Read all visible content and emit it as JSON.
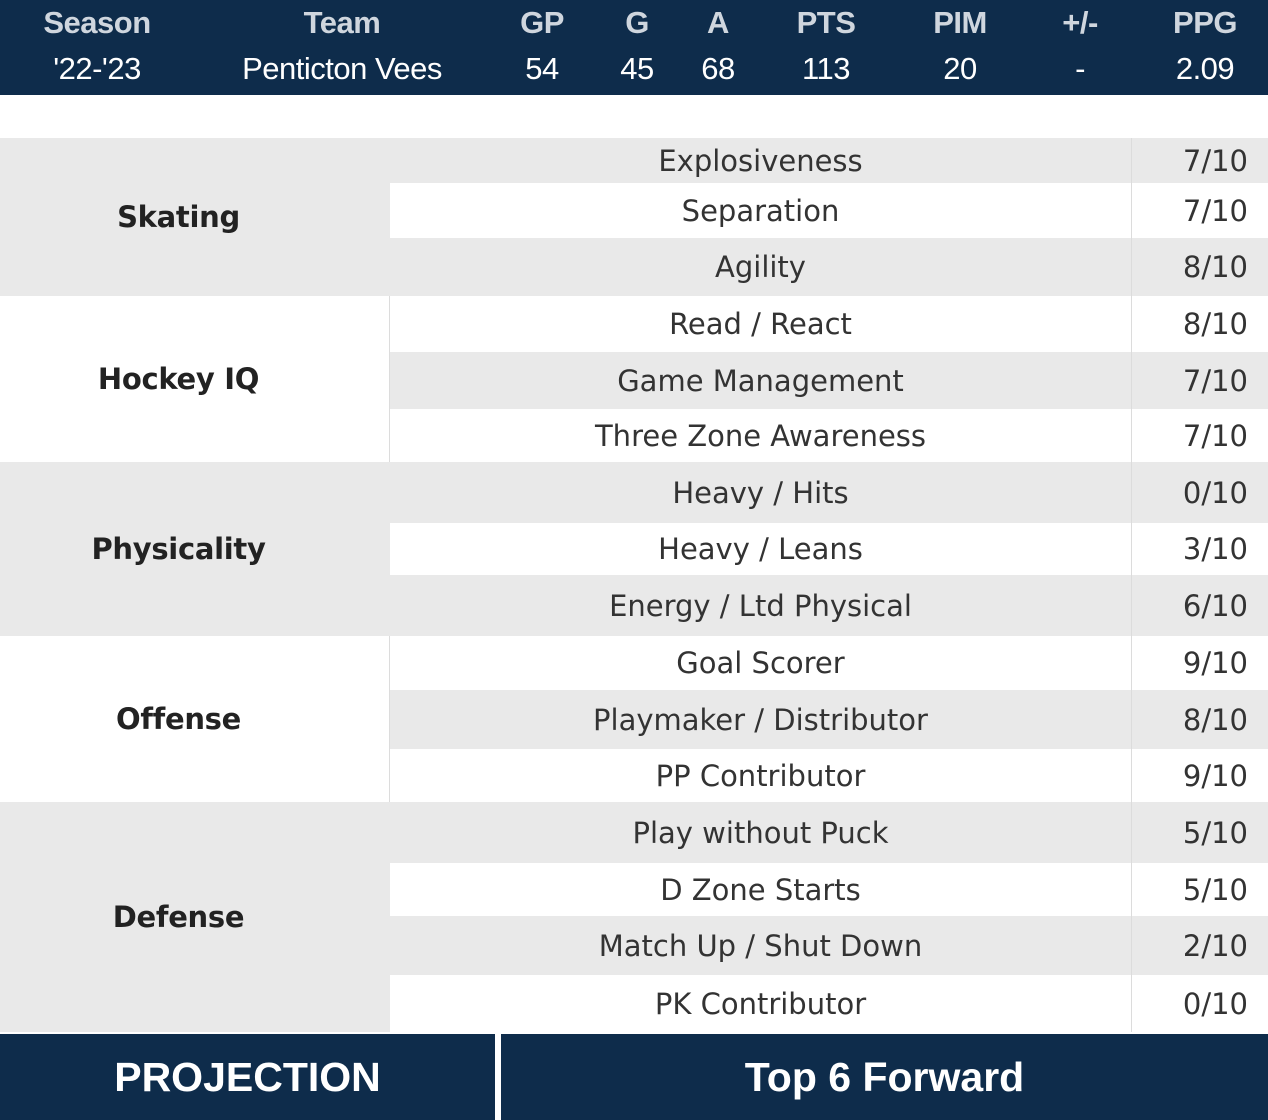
{
  "stats": {
    "headers": [
      "Season",
      "Team",
      "GP",
      "G",
      "A",
      "PTS",
      "PIM",
      "+/-",
      "PPG"
    ],
    "values": [
      "'22-'23",
      "Penticton Vees",
      "54",
      "45",
      "68",
      "113",
      "20",
      "-",
      "2.09"
    ]
  },
  "ratings": [
    {
      "category": "Skating",
      "skills": [
        {
          "name": "Explosiveness",
          "score": "7/10"
        },
        {
          "name": "Separation",
          "score": "7/10"
        },
        {
          "name": "Agility",
          "score": "8/10"
        }
      ]
    },
    {
      "category": "Hockey IQ",
      "skills": [
        {
          "name": "Read / React",
          "score": "8/10"
        },
        {
          "name": "Game Management",
          "score": "7/10"
        },
        {
          "name": "Three Zone Awareness",
          "score": "7/10"
        }
      ]
    },
    {
      "category": "Physicality",
      "skills": [
        {
          "name": "Heavy / Hits",
          "score": "0/10"
        },
        {
          "name": "Heavy / Leans",
          "score": "3/10"
        },
        {
          "name": "Energy / Ltd Physical",
          "score": "6/10"
        }
      ]
    },
    {
      "category": "Offense",
      "skills": [
        {
          "name": "Goal Scorer",
          "score": "9/10"
        },
        {
          "name": "Playmaker / Distributor",
          "score": "8/10"
        },
        {
          "name": "PP Contributor",
          "score": "9/10"
        }
      ]
    },
    {
      "category": "Defense",
      "skills": [
        {
          "name": "Play without Puck",
          "score": "5/10"
        },
        {
          "name": "D Zone Starts",
          "score": "5/10"
        },
        {
          "name": "Match Up / Shut Down",
          "score": "2/10"
        },
        {
          "name": "PK Contributor",
          "score": "0/10"
        }
      ]
    }
  ],
  "projection": {
    "label": "PROJECTION",
    "value": "Top 6 Forward"
  },
  "colors": {
    "navy": "#0e2c4b",
    "row_gray": "#e9e9e9",
    "row_white": "#ffffff"
  }
}
